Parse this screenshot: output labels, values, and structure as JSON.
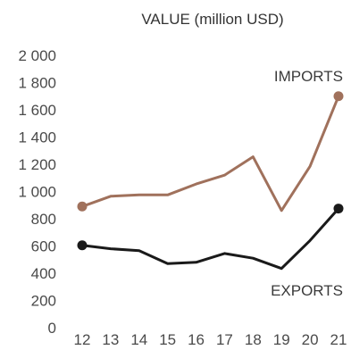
{
  "chart_data": {
    "type": "line",
    "title": "VALUE (million USD)",
    "xlabel": "",
    "ylabel": "",
    "x": [
      "12",
      "13",
      "14",
      "15",
      "16",
      "17",
      "18",
      "19",
      "20",
      "21"
    ],
    "ylim": [
      0,
      2000
    ],
    "yticks": [
      "0",
      "200",
      "400",
      "600",
      "800",
      "1 000",
      "1 200",
      "1 400",
      "1 600",
      "1 800",
      "2 000"
    ],
    "ytick_values": [
      0,
      200,
      400,
      600,
      800,
      1000,
      1200,
      1400,
      1600,
      1800,
      2000
    ],
    "grid": false,
    "series": [
      {
        "name": "IMPORTS",
        "color": "#a0715c",
        "values": [
          890,
          965,
          975,
          975,
          1055,
          1120,
          1255,
          860,
          1185,
          1700
        ],
        "show_markers_at": [
          0,
          9
        ]
      },
      {
        "name": "EXPORTS",
        "color": "#1a1a1a",
        "values": [
          605,
          580,
          565,
          470,
          480,
          545,
          510,
          435,
          640,
          875
        ],
        "show_markers_at": [
          0,
          9
        ]
      }
    ]
  }
}
